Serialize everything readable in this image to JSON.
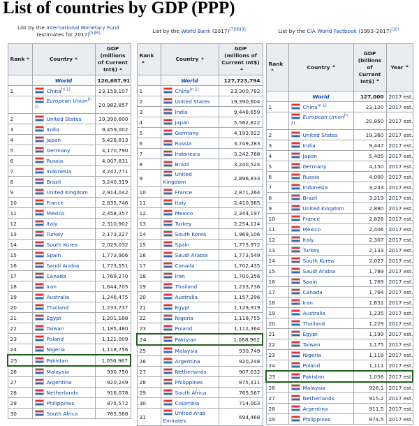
{
  "title": "List of countries by GDP (PPP)",
  "tables": [
    {
      "caption": {
        "prefix": "List by the ",
        "link": "International Monetary Fund",
        "suffix": " (estimates for 2017)",
        "refs": "[5][6]"
      },
      "headers": [
        "Rank",
        "Country",
        "GDP (millions of Current Int$)"
      ],
      "rows": [
        {
          "country": "World",
          "gdp": "126,687,917"
        },
        {
          "rank": "1",
          "country": "China",
          "note": "[n 1]",
          "gdp": "23,159,107"
        },
        {
          "country": "European Union",
          "note": "[n 2]",
          "gdp": "20,982,857"
        },
        {
          "rank": "2",
          "country": "United States",
          "gdp": "19,390,600"
        },
        {
          "rank": "3",
          "country": "India",
          "gdp": "9,459,002"
        },
        {
          "rank": "4",
          "country": "Japan",
          "gdp": "5,428,813"
        },
        {
          "rank": "5",
          "country": "Germany",
          "gdp": "4,170,790"
        },
        {
          "rank": "6",
          "country": "Russia",
          "gdp": "4,007,831"
        },
        {
          "rank": "7",
          "country": "Indonesia",
          "gdp": "3,242,771"
        },
        {
          "rank": "8",
          "country": "Brazil",
          "gdp": "3,240,319"
        },
        {
          "rank": "9",
          "country": "United Kingdom",
          "gdp": "2,914,042"
        },
        {
          "rank": "10",
          "country": "France",
          "gdp": "2,835,746"
        },
        {
          "rank": "11",
          "country": "Mexico",
          "gdp": "2,458,357"
        },
        {
          "rank": "12",
          "country": "Italy",
          "gdp": "2,310,902"
        },
        {
          "rank": "13",
          "country": "Turkey",
          "gdp": "2,173,227"
        },
        {
          "rank": "14",
          "country": "South Korea",
          "gdp": "2,029,032"
        },
        {
          "rank": "15",
          "country": "Spain",
          "gdp": "1,773,906"
        },
        {
          "rank": "16",
          "country": "Saudi Arabia",
          "gdp": "1,773,551"
        },
        {
          "rank": "17",
          "country": "Canada",
          "gdp": "1,769,270"
        },
        {
          "rank": "18",
          "country": "Iran",
          "gdp": "1,644,705"
        },
        {
          "rank": "19",
          "country": "Australia",
          "gdp": "1,246,475"
        },
        {
          "rank": "20",
          "country": "Thailand",
          "gdp": "1,233,737"
        },
        {
          "rank": "21",
          "country": "Egypt",
          "gdp": "1,201,188"
        },
        {
          "rank": "22",
          "country": "Taiwan",
          "gdp": "1,185,480"
        },
        {
          "rank": "23",
          "country": "Poland",
          "gdp": "1,121,009"
        },
        {
          "rank": "24",
          "country": "Nigeria",
          "gdp": "1,118,756"
        },
        {
          "rank": "25",
          "country": "Pakistan",
          "gdp": "1,056,987",
          "highlight": true
        },
        {
          "rank": "26",
          "country": "Malaysia",
          "gdp": "930,750"
        },
        {
          "rank": "27",
          "country": "Argentina",
          "gdp": "920,249"
        },
        {
          "rank": "28",
          "country": "Netherlands",
          "gdp": "916,078"
        },
        {
          "rank": "29",
          "country": "Philippines",
          "gdp": "875,572"
        },
        {
          "rank": "30",
          "country": "South Africa",
          "gdp": "765,568"
        }
      ]
    },
    {
      "caption": {
        "prefix": "List by the ",
        "link": "World Bank",
        "suffix": " (2017)",
        "refs": "[7][8][9]"
      },
      "headers": [
        "Rank",
        "Country",
        "GDP (millions of Current Int$)"
      ],
      "rows": [
        {
          "country": "World",
          "gdp": "127,723,794"
        },
        {
          "rank": "1",
          "country": "China",
          "note": "[n 1]",
          "gdp": "23,300,782"
        },
        {
          "rank": "2",
          "country": "United States",
          "gdp": "19,390,604"
        },
        {
          "rank": "3",
          "country": "India",
          "gdp": "9,448,659"
        },
        {
          "rank": "4",
          "country": "Japan",
          "gdp": "5,562,822"
        },
        {
          "rank": "5",
          "country": "Germany",
          "gdp": "4,193,922"
        },
        {
          "rank": "6",
          "country": "Russia",
          "gdp": "3,749,283"
        },
        {
          "rank": "7",
          "country": "Indonesia",
          "gdp": "3,242,768"
        },
        {
          "rank": "8",
          "country": "Brazil",
          "gdp": "3,240,524"
        },
        {
          "rank": "9",
          "country": "United Kingdom",
          "gdp": "2,896,833"
        },
        {
          "rank": "10",
          "country": "France",
          "gdp": "2,871,264"
        },
        {
          "rank": "11",
          "country": "Italy",
          "gdp": "2,410,985"
        },
        {
          "rank": "12",
          "country": "Mexico",
          "gdp": "2,344,197"
        },
        {
          "rank": "13",
          "country": "Turkey",
          "gdp": "2,254,114"
        },
        {
          "rank": "14",
          "country": "South Korea",
          "gdp": "1,969,106"
        },
        {
          "rank": "15",
          "country": "Spain",
          "gdp": "1,773,972"
        },
        {
          "rank": "16",
          "country": "Saudi Arabia",
          "gdp": "1,773,549"
        },
        {
          "rank": "17",
          "country": "Canada",
          "gdp": "1,702,435"
        },
        {
          "rank": "18",
          "country": "Iran",
          "gdp": "1,700,356"
        },
        {
          "rank": "19",
          "country": "Thailand",
          "gdp": "1,233,736"
        },
        {
          "rank": "20",
          "country": "Australia",
          "gdp": "1,157,296"
        },
        {
          "rank": "21",
          "country": "Egypt",
          "gdp": "1,129,919"
        },
        {
          "rank": "22",
          "country": "Nigeria",
          "gdp": "1,118,755"
        },
        {
          "rank": "23",
          "country": "Poland",
          "gdp": "1,112,364"
        },
        {
          "rank": "24",
          "country": "Pakistan",
          "gdp": "1,088,962",
          "highlight": true
        },
        {
          "rank": "25",
          "country": "Malaysia",
          "gdp": "930,749"
        },
        {
          "rank": "26",
          "country": "Argentina",
          "gdp": "920,248"
        },
        {
          "rank": "27",
          "country": "Netherlands",
          "gdp": "907,032"
        },
        {
          "rank": "28",
          "country": "Philippines",
          "gdp": "875,311"
        },
        {
          "rank": "29",
          "country": "South Africa",
          "gdp": "765,567"
        },
        {
          "rank": "30",
          "country": "Colombia",
          "gdp": "714,003"
        },
        {
          "rank": "31",
          "country": "United Arab Emirates",
          "gdp": "694,468"
        }
      ]
    },
    {
      "caption": {
        "prefix": "List by the ",
        "link": "CIA World Factbook",
        "suffix": " (1993–2017)",
        "refs": "[10]"
      },
      "headers": [
        "Rank",
        "Country",
        "GDP (billions of Current Int$)",
        "Year"
      ],
      "rows": [
        {
          "country": "World",
          "gdp": "127,000",
          "year": "2017 est."
        },
        {
          "rank": "1",
          "country": "China",
          "note": "[n 1]",
          "gdp": "23,120",
          "year": "2017 est."
        },
        {
          "country": "European Union",
          "note": "[n 2]",
          "gdp": "20,850",
          "year": "2017 est."
        },
        {
          "rank": "2",
          "country": "United States",
          "gdp": "19,360",
          "year": "2017 est."
        },
        {
          "rank": "3",
          "country": "India",
          "gdp": "9,447",
          "year": "2017 est."
        },
        {
          "rank": "4",
          "country": "Japan",
          "gdp": "5,405",
          "year": "2017 est."
        },
        {
          "rank": "5",
          "country": "Germany",
          "gdp": "4,150",
          "year": "2017 est."
        },
        {
          "rank": "6",
          "country": "Russia",
          "gdp": "4,000",
          "year": "2017 est."
        },
        {
          "rank": "7",
          "country": "Indonesia",
          "gdp": "3,243",
          "year": "2017 est."
        },
        {
          "rank": "8",
          "country": "Brazil",
          "gdp": "3,219",
          "year": "2017 est."
        },
        {
          "rank": "9",
          "country": "United Kingdom",
          "gdp": "2,880",
          "year": "2017 est."
        },
        {
          "rank": "10",
          "country": "France",
          "gdp": "2,826",
          "year": "2017 est."
        },
        {
          "rank": "11",
          "country": "Mexico",
          "gdp": "2,406",
          "year": "2017 est."
        },
        {
          "rank": "12",
          "country": "Italy",
          "gdp": "2,307",
          "year": "2017 est."
        },
        {
          "rank": "13",
          "country": "Turkey",
          "gdp": "2,133",
          "year": "2017 est."
        },
        {
          "rank": "14",
          "country": "South Korea",
          "gdp": "2,027",
          "year": "2017 est."
        },
        {
          "rank": "15",
          "country": "Saudi Arabia",
          "gdp": "1,789",
          "year": "2017 est."
        },
        {
          "rank": "16",
          "country": "Spain",
          "gdp": "1,769",
          "year": "2017 est."
        },
        {
          "rank": "17",
          "country": "Canada",
          "gdp": "1,764",
          "year": "2017 est."
        },
        {
          "rank": "18",
          "country": "Iran",
          "gdp": "1,631",
          "year": "2017 est."
        },
        {
          "rank": "19",
          "country": "Australia",
          "gdp": "1,235",
          "year": "2017 est."
        },
        {
          "rank": "20",
          "country": "Thailand",
          "gdp": "1,229",
          "year": "2017 est."
        },
        {
          "rank": "21",
          "country": "Egypt",
          "gdp": "1,199",
          "year": "2017 est."
        },
        {
          "rank": "22",
          "country": "Taiwan",
          "gdp": "1,175",
          "year": "2017 est."
        },
        {
          "rank": "23",
          "country": "Nigeria",
          "gdp": "1,118",
          "year": "2017 est."
        },
        {
          "rank": "24",
          "country": "Poland",
          "gdp": "1,111",
          "year": "2017 est."
        },
        {
          "rank": "25",
          "country": "Pakistan",
          "gdp": "1,056",
          "year": "2017 est.",
          "highlight": true
        },
        {
          "rank": "26",
          "country": "Malaysia",
          "gdp": "926.1",
          "year": "2017 est."
        },
        {
          "rank": "27",
          "country": "Netherlands",
          "gdp": "915.2",
          "year": "2017 est."
        },
        {
          "rank": "28",
          "country": "Argentina",
          "gdp": "911.5",
          "year": "2017 est."
        },
        {
          "rank": "29",
          "country": "Philippines",
          "gdp": "874.5",
          "year": "2017 est."
        }
      ]
    }
  ]
}
